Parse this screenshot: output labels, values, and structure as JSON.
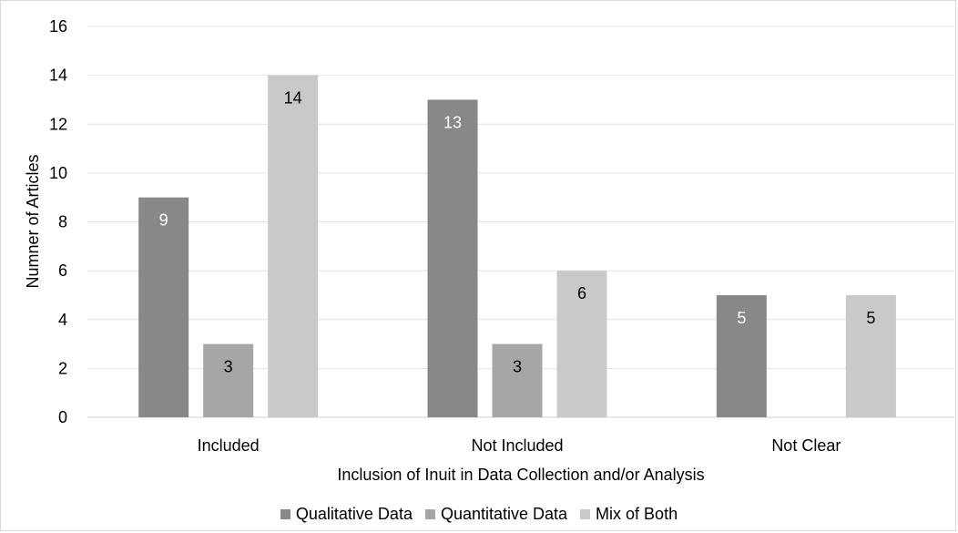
{
  "chart_data": {
    "type": "bar",
    "categories": [
      "Included",
      "Not Included",
      "Not Clear"
    ],
    "series": [
      {
        "name": "Qualitative Data",
        "values": [
          9,
          13,
          5
        ],
        "color": "#888888",
        "label_color": "#ffffff"
      },
      {
        "name": "Quantitative Data",
        "values": [
          3,
          3,
          null
        ],
        "color": "#a6a6a6",
        "label_color": "#000000"
      },
      {
        "name": "Mix of Both",
        "values": [
          14,
          6,
          5
        ],
        "color": "#c9c9c9",
        "label_color": "#000000"
      }
    ],
    "xlabel": "Inclusion of Inuit in Data Collection and/or Analysis",
    "ylabel": "Numner of Articles",
    "ylim": [
      0,
      16
    ],
    "yticks": [
      0,
      2,
      4,
      6,
      8,
      10,
      12,
      14,
      16
    ],
    "grid": true,
    "legend_position": "bottom"
  }
}
